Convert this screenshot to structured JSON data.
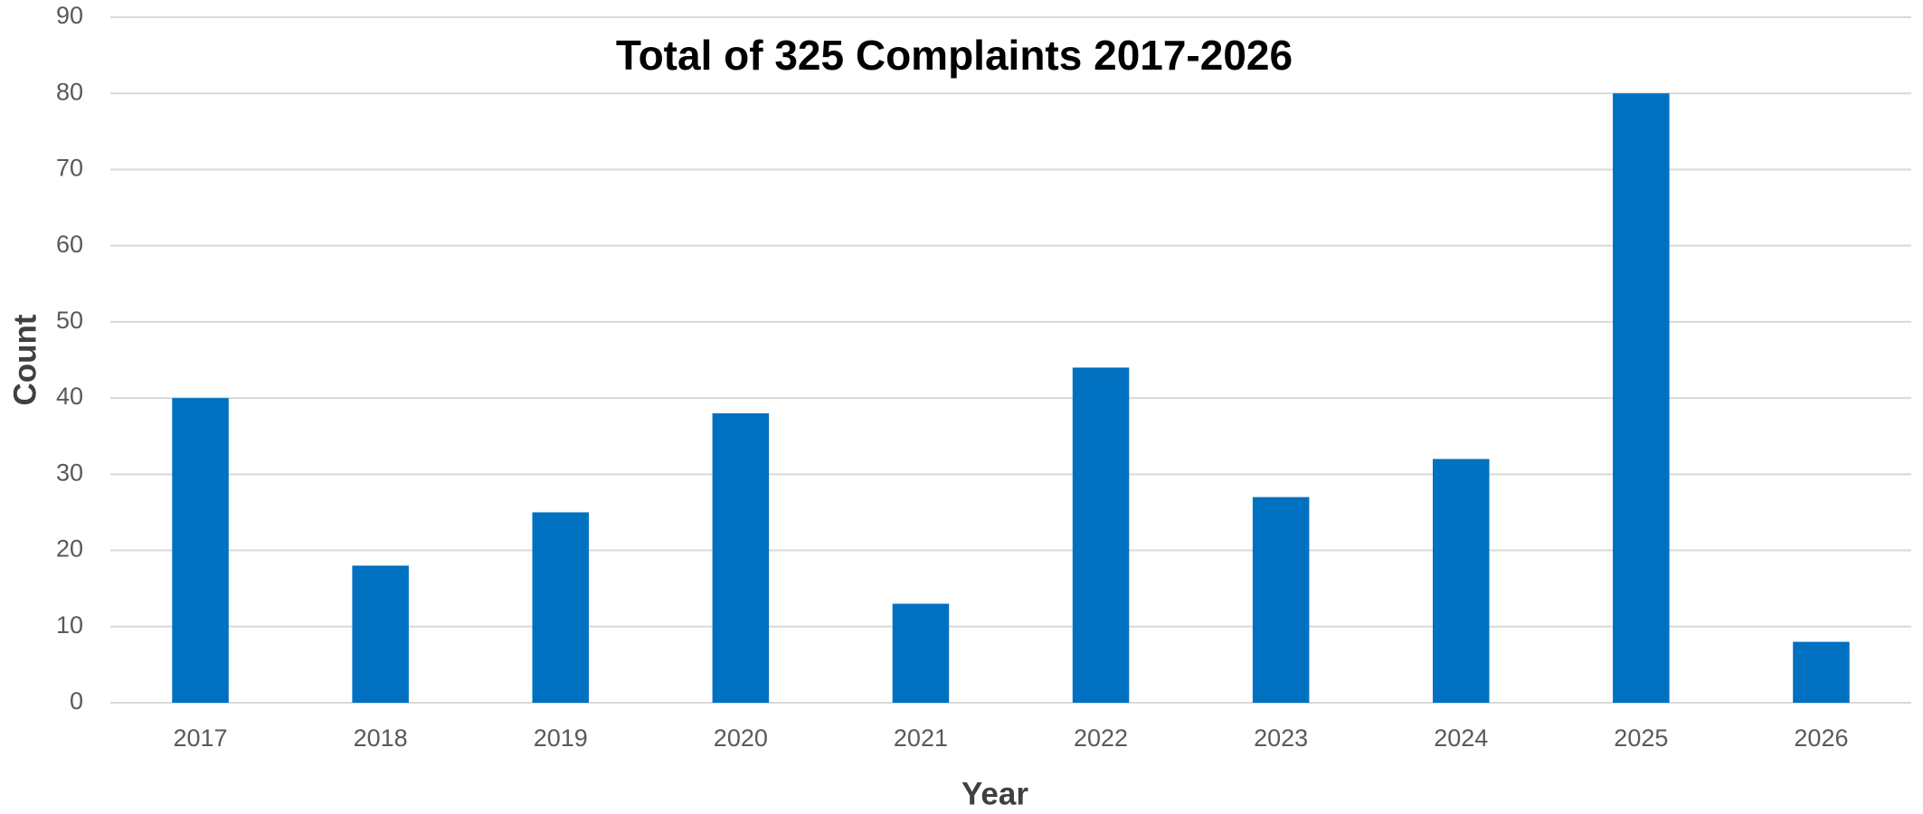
{
  "chart_data": {
    "type": "bar",
    "title": "Total of 325 Complaints 2017-2026",
    "x_label": "Year",
    "y_label": "Count",
    "categories": [
      "2017",
      "2018",
      "2019",
      "2020",
      "2021",
      "2022",
      "2023",
      "2024",
      "2025",
      "2026"
    ],
    "values": [
      40,
      18,
      25,
      38,
      13,
      44,
      27,
      32,
      80,
      8
    ],
    "color": "#0070c0",
    "ylim": [
      0,
      90
    ],
    "yticks": [
      0,
      10,
      20,
      30,
      40,
      50,
      60,
      70,
      80,
      90
    ],
    "grid": true
  }
}
